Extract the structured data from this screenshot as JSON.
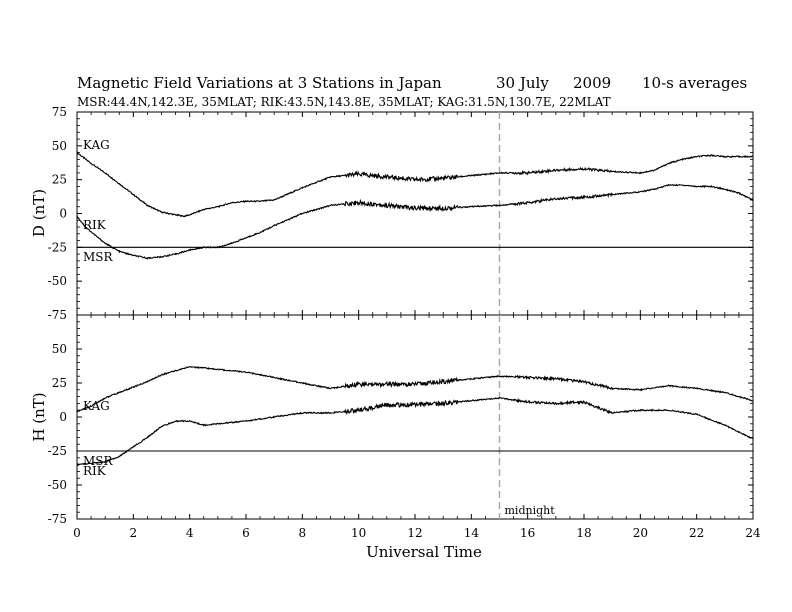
{
  "title_line1": {
    "text": "Magnetic Field Variations at 3 Stations in Japan",
    "date": "30 July",
    "year": "2009",
    "avg": "10-s averages"
  },
  "title_line2": "MSR:44.4N,142.3E, 35MLAT;  RIK:43.5N,143.8E, 35MLAT;  KAG:31.5N,130.7E, 22MLAT",
  "xlabel": "Universal Time",
  "annotation": "midnight",
  "colors": {
    "trace": "#000000",
    "midnight_line": "#aaaaaa"
  },
  "chart_data": [
    {
      "type": "line",
      "ylabel": "D (nT)",
      "xlim": [
        0,
        24
      ],
      "ylim": [
        -75,
        75
      ],
      "xticks": [
        0,
        2,
        4,
        6,
        8,
        10,
        12,
        14,
        16,
        18,
        20,
        22,
        24
      ],
      "yticks": [
        75,
        50,
        25,
        0,
        -25,
        -50,
        -75
      ],
      "midnight_ut": 15,
      "series": [
        {
          "name": "KAG",
          "x": [
            0,
            0.5,
            1,
            1.5,
            2,
            2.5,
            3,
            3.5,
            3.8,
            4,
            4.5,
            5,
            5.5,
            6,
            6.5,
            7,
            8,
            9,
            10,
            11,
            12,
            13,
            14,
            15,
            16,
            17,
            18,
            19,
            20,
            20.5,
            21,
            21.5,
            22,
            22.5,
            23,
            24
          ],
          "y": [
            45,
            37,
            30,
            22,
            14,
            6,
            1,
            -1,
            -2,
            -1,
            3,
            5,
            8,
            9,
            9,
            10,
            19,
            27,
            29,
            27,
            25,
            26,
            28,
            30,
            30,
            32,
            33,
            31,
            30,
            32,
            37,
            40,
            42,
            43,
            42,
            42
          ]
        },
        {
          "name": "RIK",
          "x": [
            0,
            0.3,
            0.7,
            1,
            1.5,
            2,
            2.5,
            3,
            3.5,
            4,
            4.5,
            5,
            5.5,
            6,
            6.5,
            7,
            8,
            9,
            10,
            11,
            12,
            13,
            14,
            15,
            16,
            17,
            18,
            19,
            20,
            20.5,
            21,
            21.5,
            22,
            22.5,
            23,
            23.5,
            24
          ],
          "y": [
            -2,
            -10,
            -17,
            -22,
            -28,
            -31,
            -33,
            -32,
            -30,
            -27,
            -25,
            -25,
            -22,
            -18,
            -14,
            -9,
            0,
            6,
            8,
            6,
            4,
            4,
            5,
            6,
            8,
            11,
            12,
            14,
            16,
            18,
            21,
            21,
            20,
            20,
            18,
            15,
            10
          ]
        },
        {
          "name": "MSR",
          "x": [
            0,
            24
          ],
          "y": [
            -25,
            -25
          ]
        }
      ]
    },
    {
      "type": "line",
      "ylabel": "H (nT)",
      "xlim": [
        0,
        24
      ],
      "ylim": [
        -75,
        75
      ],
      "xticks": [
        0,
        2,
        4,
        6,
        8,
        10,
        12,
        14,
        16,
        18,
        20,
        22,
        24
      ],
      "yticks": [
        50,
        25,
        0,
        -25,
        -50,
        -75
      ],
      "midnight_ut": 15,
      "series": [
        {
          "name": "KAG",
          "x": [
            0,
            0.5,
            1,
            1.5,
            2,
            2.5,
            3,
            3.5,
            4,
            4.5,
            5,
            6,
            7,
            8,
            9,
            10,
            11,
            12,
            13,
            14,
            15,
            16,
            17,
            18,
            19,
            20,
            21,
            22,
            23,
            24
          ],
          "y": [
            4,
            8,
            14,
            18,
            22,
            26,
            31,
            34,
            37,
            36,
            35,
            33,
            29,
            25,
            21,
            24,
            24,
            24,
            26,
            28,
            30,
            29,
            28,
            26,
            21,
            20,
            23,
            21,
            18,
            12
          ]
        },
        {
          "name": "RIK",
          "x": [
            0,
            0.5,
            1,
            1.5,
            2,
            2.5,
            3,
            3.5,
            4,
            4.5,
            5,
            6,
            7,
            8,
            9,
            10,
            11,
            12,
            13,
            14,
            15,
            16,
            17,
            18,
            19,
            20,
            21,
            22,
            23,
            24
          ],
          "y": [
            -35,
            -34,
            -33,
            -29,
            -22,
            -15,
            -7,
            -3,
            -3,
            -6,
            -5,
            -3,
            0,
            3,
            3,
            5,
            9,
            9,
            10,
            12,
            14,
            11,
            10,
            11,
            3,
            5,
            5,
            2,
            -6,
            -16
          ]
        },
        {
          "name": "MSR",
          "x": [
            0,
            24
          ],
          "y": [
            -25,
            -25
          ]
        }
      ]
    }
  ]
}
